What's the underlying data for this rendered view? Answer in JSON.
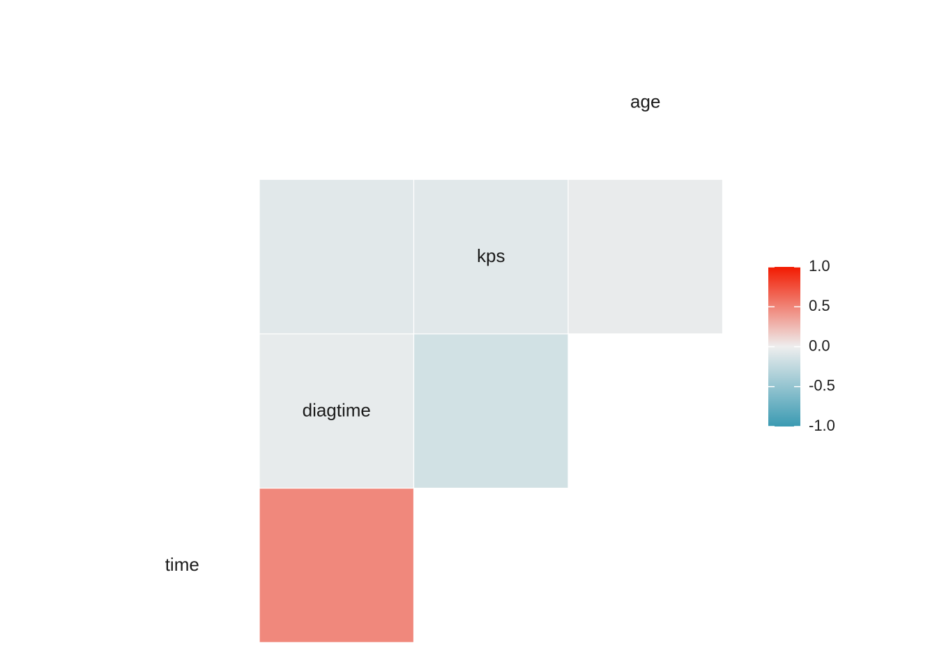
{
  "chart_data": {
    "type": "heatmap",
    "title": "",
    "variables": [
      "time",
      "diagtime",
      "kps",
      "age"
    ],
    "cells": [
      {
        "row": "diagtime",
        "col": "time",
        "value": 0.48
      },
      {
        "row": "kps",
        "col": "time",
        "value": -0.04
      },
      {
        "row": "kps",
        "col": "diagtime",
        "value": -0.16
      },
      {
        "row": "age",
        "col": "time",
        "value": -0.07
      },
      {
        "row": "age",
        "col": "diagtime",
        "value": -0.07
      },
      {
        "row": "age",
        "col": "kps",
        "value": -0.03
      }
    ],
    "legend": {
      "placement": "right",
      "range": [
        -1.0,
        1.0
      ],
      "ticks": [
        {
          "value": 1.0,
          "label": "1.0"
        },
        {
          "value": 0.5,
          "label": "0.5"
        },
        {
          "value": 0.0,
          "label": "0.0"
        },
        {
          "value": -0.5,
          "label": "-0.5"
        },
        {
          "value": -1.0,
          "label": "-1.0"
        }
      ]
    },
    "colors": {
      "low": "#3A9AB2",
      "mid": "#EEEEEE",
      "high": "#F21A00"
    },
    "grid": false
  }
}
